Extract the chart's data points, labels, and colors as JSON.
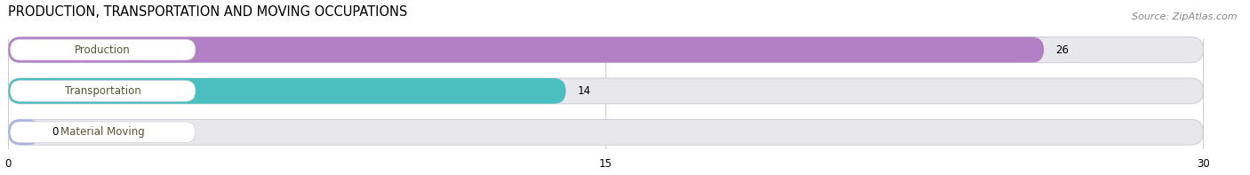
{
  "title": "PRODUCTION, TRANSPORTATION AND MOVING OCCUPATIONS",
  "source": "Source: ZipAtlas.com",
  "categories": [
    "Production",
    "Transportation",
    "Material Moving"
  ],
  "values": [
    26,
    14,
    0
  ],
  "bar_colors": [
    "#b07fc4",
    "#4bbfbf",
    "#aab4e0"
  ],
  "bar_bg_color": "#e8e8ec",
  "bar_border_color": "#d0d0d8",
  "xlim": [
    0,
    30
  ],
  "xticks": [
    0,
    15,
    30
  ],
  "figsize": [
    14.06,
    1.97
  ],
  "dpi": 100,
  "title_fontsize": 10.5,
  "label_fontsize": 8.5,
  "value_fontsize": 8.5,
  "source_fontsize": 8
}
